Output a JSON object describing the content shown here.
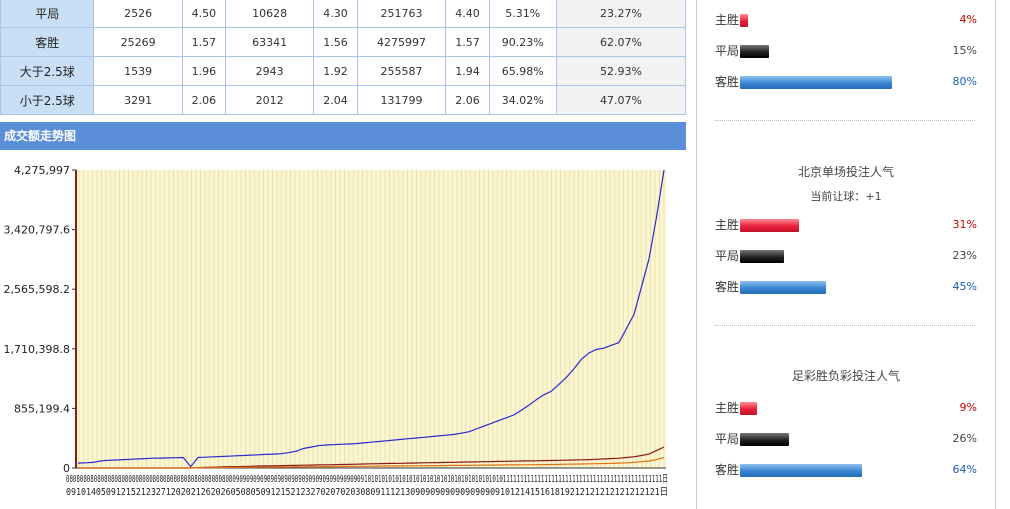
{
  "odds_table": {
    "rows": [
      {
        "label": "平局",
        "c1": "2526",
        "c2": "4.50",
        "c3": "10628",
        "c4": "4.30",
        "c5": "251763",
        "c6": "4.40",
        "c7": "5.31%",
        "c8": "23.27%"
      },
      {
        "label": "客胜",
        "c1": "25269",
        "c2": "1.57",
        "c3": "63341",
        "c4": "1.56",
        "c5": "4275997",
        "c6": "1.57",
        "c7": "90.23%",
        "c8": "62.07%"
      },
      {
        "label": "大于2.5球",
        "c1": "1539",
        "c2": "1.96",
        "c3": "2943",
        "c4": "1.92",
        "c5": "255587",
        "c6": "1.94",
        "c7": "65.98%",
        "c8": "52.93%"
      },
      {
        "label": "小于2.5球",
        "c1": "3291",
        "c2": "2.06",
        "c3": "2012",
        "c4": "2.04",
        "c5": "131799",
        "c6": "2.06",
        "c7": "34.02%",
        "c8": "47.07%"
      }
    ]
  },
  "trend": {
    "title": "成交额走势图"
  },
  "chart_data": {
    "type": "line",
    "ylim": [
      0,
      4275997
    ],
    "yticks": [
      "4,275,997",
      "3,420,797.6",
      "2,565,598.2",
      "1,710,398.8",
      "855,199.4",
      "0"
    ],
    "x_tick_row1": "0808080808080808080808080808080808080808080808080909090909090909090909090909090909090910101010101010101010101010101010101010101111111111111111111111111111111111111111111111日",
    "x_tick_row2": "09101405091215212327120202126202605080509121521232702070203080911121309090909090909090910121415161819212121212121212121日",
    "series": [
      {
        "color": "#2a2ad0",
        "values": [
          70000,
          75000,
          80000,
          100000,
          110000,
          115000,
          120000,
          125000,
          130000,
          135000,
          140000,
          142000,
          145000,
          148000,
          150000,
          20000,
          152000,
          155000,
          160000,
          165000,
          170000,
          175000,
          180000,
          185000,
          190000,
          195000,
          200000,
          205000,
          220000,
          240000,
          280000,
          300000,
          320000,
          330000,
          335000,
          340000,
          345000,
          350000,
          360000,
          370000,
          380000,
          390000,
          400000,
          410000,
          420000,
          430000,
          440000,
          450000,
          460000,
          470000,
          480000,
          500000,
          520000,
          560000,
          600000,
          640000,
          680000,
          720000,
          760000,
          830000,
          900000,
          980000,
          1050000,
          1100000,
          1200000,
          1300000,
          1420000,
          1560000,
          1650000,
          1700000,
          1720000,
          1760000,
          1800000,
          2000000,
          2200000,
          2600000,
          3000000,
          3600000,
          4275997
        ]
      },
      {
        "color": "#8b1a1a",
        "values": [
          0,
          0,
          0,
          0,
          0,
          0,
          0,
          0,
          0,
          0,
          0,
          0,
          0,
          0,
          0,
          0,
          5000,
          10000,
          12000,
          15000,
          18000,
          20000,
          22000,
          25000,
          28000,
          30000,
          32000,
          34000,
          36000,
          38000,
          40000,
          42000,
          44000,
          46000,
          48000,
          50000,
          52000,
          55000,
          58000,
          60000,
          62000,
          64000,
          66000,
          68000,
          70000,
          72000,
          74000,
          76000,
          78000,
          80000,
          82000,
          84000,
          86000,
          88000,
          90000,
          92000,
          94000,
          96000,
          98000,
          100000,
          102000,
          104000,
          106000,
          108000,
          110000,
          112000,
          115000,
          118000,
          120000,
          125000,
          130000,
          135000,
          140000,
          150000,
          160000,
          180000,
          200000,
          250000,
          300000
        ]
      },
      {
        "color": "#e07010",
        "values": [
          0,
          0,
          0,
          0,
          0,
          0,
          0,
          0,
          0,
          0,
          0,
          0,
          0,
          0,
          0,
          0,
          2000,
          4000,
          5000,
          6000,
          7000,
          8000,
          9000,
          10000,
          11000,
          12000,
          13000,
          14000,
          15000,
          16000,
          17000,
          18000,
          19000,
          20000,
          21000,
          22000,
          23000,
          24000,
          25000,
          26000,
          27000,
          28000,
          29000,
          30000,
          31000,
          32000,
          33000,
          34000,
          35000,
          36000,
          37000,
          38000,
          39000,
          40000,
          41000,
          42000,
          43000,
          44000,
          45000,
          46000,
          47000,
          48000,
          49000,
          50000,
          52000,
          54000,
          56000,
          58000,
          60000,
          62000,
          64000,
          66000,
          70000,
          75000,
          80000,
          90000,
          100000,
          120000,
          150000
        ]
      }
    ]
  },
  "popularity": {
    "top": {
      "rows": [
        {
          "label": "主胜",
          "pct": "4%",
          "value": 4,
          "color": "red",
          "pct_color": "#cc0000"
        },
        {
          "label": "平局",
          "pct": "15%",
          "value": 15,
          "color": "black",
          "pct_color": "#444444"
        },
        {
          "label": "客胜",
          "pct": "80%",
          "value": 80,
          "color": "blue",
          "pct_color": "#1a5fb4"
        }
      ]
    },
    "beijing": {
      "title": "北京单场投注人气",
      "sub": "当前让球：+1",
      "rows": [
        {
          "label": "主胜",
          "pct": "31%",
          "value": 31,
          "color": "red",
          "pct_color": "#cc0000"
        },
        {
          "label": "平局",
          "pct": "23%",
          "value": 23,
          "color": "black",
          "pct_color": "#444444"
        },
        {
          "label": "客胜",
          "pct": "45%",
          "value": 45,
          "color": "blue",
          "pct_color": "#1a5fb4"
        }
      ]
    },
    "zucai": {
      "title": "足彩胜负彩投注人气",
      "rows": [
        {
          "label": "主胜",
          "pct": "9%",
          "value": 9,
          "color": "red",
          "pct_color": "#cc0000"
        },
        {
          "label": "平局",
          "pct": "26%",
          "value": 26,
          "color": "black",
          "pct_color": "#444444"
        },
        {
          "label": "客胜",
          "pct": "64%",
          "value": 64,
          "color": "blue",
          "pct_color": "#1a5fb4"
        }
      ]
    }
  }
}
